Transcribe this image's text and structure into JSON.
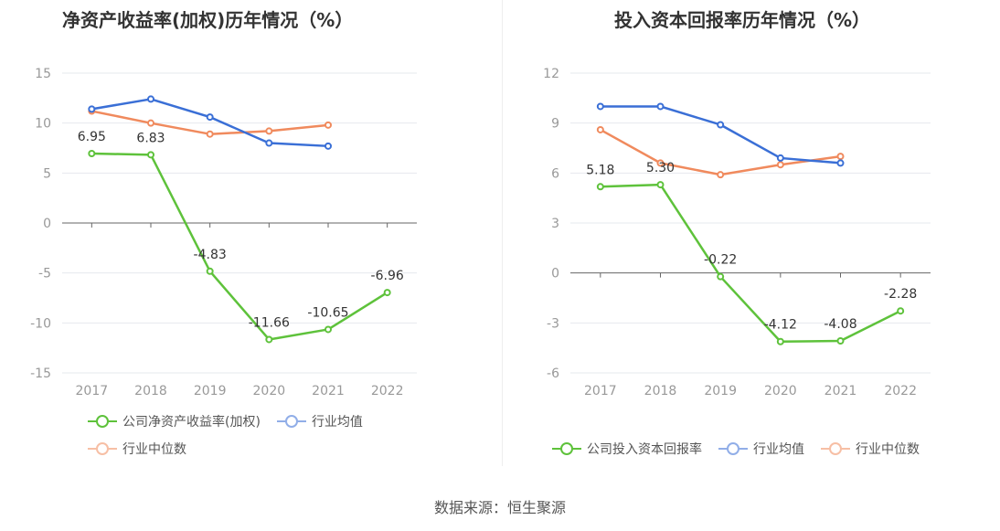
{
  "source_note": "数据来源：恒生聚源",
  "chart_data": [
    {
      "type": "line",
      "title": "净资产收益率(加权)历年情况（%）",
      "categories": [
        "2017",
        "2018",
        "2019",
        "2020",
        "2021",
        "2022"
      ],
      "ylim": [
        -15,
        15
      ],
      "yticks": [
        15,
        10,
        5,
        0,
        -5,
        -10,
        -15
      ],
      "grid": true,
      "legend_position": "bottom-left",
      "series": [
        {
          "name": "公司净资产收益率(加权)",
          "color": "#5ec23b",
          "values": [
            6.95,
            6.83,
            -4.83,
            -11.66,
            -10.65,
            -6.96
          ],
          "labels": [
            "6.95",
            "6.83",
            "-4.83",
            "-11.66",
            "-10.65",
            "-6.96"
          ]
        },
        {
          "name": "行业均值",
          "color": "#3a6fd6",
          "legend_color": "#91aee8",
          "values": [
            11.4,
            12.4,
            10.6,
            8.0,
            7.7,
            null
          ]
        },
        {
          "name": "行业中位数",
          "color": "#f08a5d",
          "legend_color": "#f7bfa5",
          "values": [
            11.2,
            10.0,
            8.9,
            9.2,
            9.8,
            null
          ]
        }
      ]
    },
    {
      "type": "line",
      "title": "投入资本回报率历年情况（%）",
      "categories": [
        "2017",
        "2018",
        "2019",
        "2020",
        "2021",
        "2022"
      ],
      "ylim": [
        -6,
        12
      ],
      "yticks": [
        12,
        9,
        6,
        3,
        0,
        -3,
        -6
      ],
      "grid": true,
      "legend_position": "bottom-left",
      "series": [
        {
          "name": "公司投入资本回报率",
          "color": "#5ec23b",
          "values": [
            5.18,
            5.3,
            -0.22,
            -4.12,
            -4.08,
            -2.28
          ],
          "labels": [
            "5.18",
            "5.30",
            "-0.22",
            "-4.12",
            "-4.08",
            "-2.28"
          ]
        },
        {
          "name": "行业均值",
          "color": "#3a6fd6",
          "legend_color": "#91aee8",
          "values": [
            10.0,
            10.0,
            8.9,
            6.9,
            6.6,
            null
          ]
        },
        {
          "name": "行业中位数",
          "color": "#f08a5d",
          "legend_color": "#f7bfa5",
          "values": [
            8.6,
            6.6,
            5.9,
            6.5,
            7.0,
            null
          ]
        }
      ]
    }
  ]
}
